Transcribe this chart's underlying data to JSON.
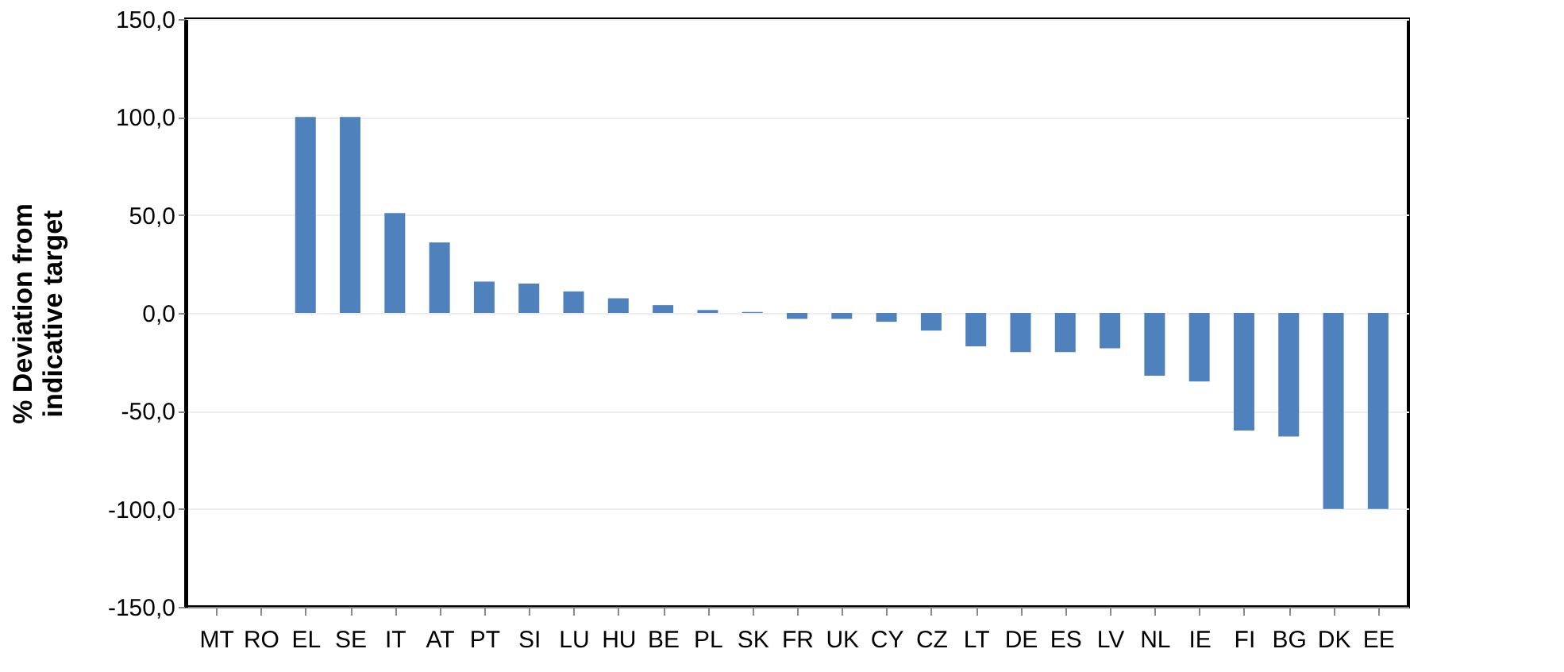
{
  "chart_data": {
    "type": "bar",
    "ylabel": "% Deviation from\nindicative target",
    "categories": [
      "MT",
      "RO",
      "EL",
      "SE",
      "IT",
      "AT",
      "PT",
      "SI",
      "LU",
      "HU",
      "BE",
      "PL",
      "SK",
      "FR",
      "UK",
      "CY",
      "CZ",
      "LT",
      "DE",
      "ES",
      "LV",
      "NL",
      "IE",
      "FI",
      "BG",
      "DK",
      "EE"
    ],
    "values": [
      0,
      0,
      100,
      100,
      51,
      36,
      16,
      15,
      11,
      7.5,
      4,
      1.5,
      0.5,
      -3,
      -3,
      -4.5,
      -9,
      -17,
      -20,
      -20,
      -18,
      -32,
      -35,
      -60,
      -63,
      -100,
      -100
    ],
    "color": "#4f81bd",
    "ylim": [
      -150,
      150
    ],
    "yticks": [
      {
        "value": -150,
        "label": "-150,0"
      },
      {
        "value": -100,
        "label": "-100,0"
      },
      {
        "value": -50,
        "label": "-50,0"
      },
      {
        "value": 0,
        "label": "0,0"
      },
      {
        "value": 50,
        "label": "50,0"
      },
      {
        "value": 100,
        "label": "100,0"
      },
      {
        "value": 150,
        "label": "150,0"
      }
    ],
    "grid": "y"
  }
}
